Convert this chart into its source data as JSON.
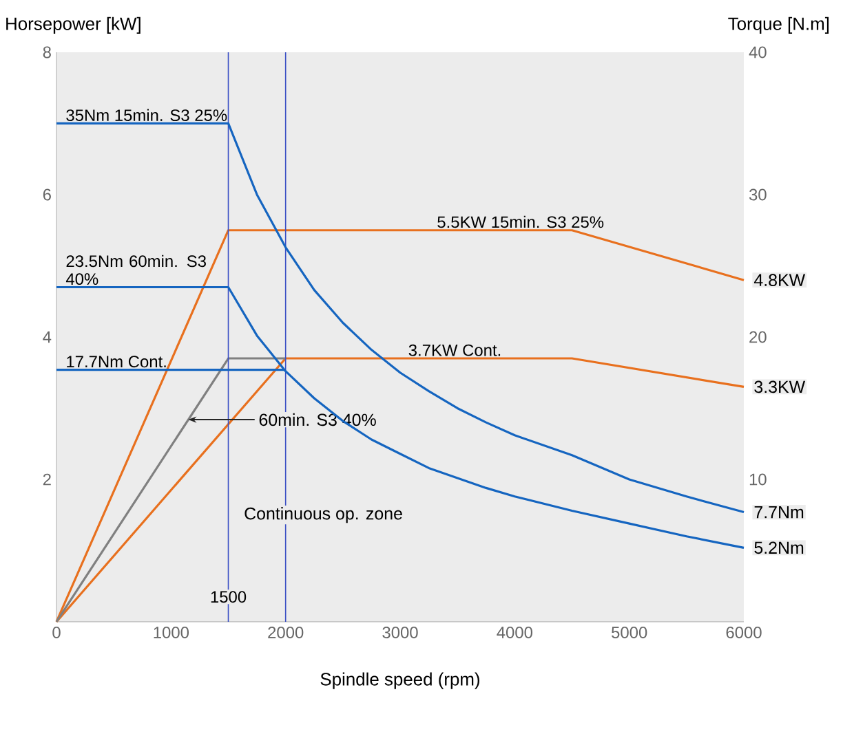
{
  "chart_data": {
    "type": "line",
    "xlabel": "Spindle speed (rpm)",
    "ylabel": "Horsepower [kW]",
    "y2label": "Torque [N.m]",
    "xlim": [
      0,
      6000
    ],
    "xticks": [
      0,
      1000,
      2000,
      3000,
      4000,
      5000,
      6000
    ],
    "ylim": [
      0,
      8
    ],
    "yticks": [
      2,
      4,
      6,
      8
    ],
    "y2lim": [
      0,
      40
    ],
    "y2ticks": [
      10,
      20,
      30,
      40
    ],
    "grid": false,
    "marker": "none",
    "line_style": "solid",
    "series": [
      {
        "name": "5.5KW 15min. S3 25%",
        "color": "#e8701e",
        "x": [
          0,
          1500,
          4500,
          6000
        ],
        "values": [
          0,
          5.5,
          5.5,
          4.8
        ]
      },
      {
        "name": "3.7KW Cont.",
        "color": "#e8701e",
        "x": [
          0,
          2000,
          4500,
          6000
        ],
        "values": [
          0,
          3.7,
          3.7,
          3.3
        ]
      },
      {
        "color": "#808080",
        "x": [
          0,
          1500,
          2000
        ],
        "values": [
          0,
          3.7,
          3.7
        ]
      },
      {
        "name": "35Nm 15min. S3 25%",
        "color": "#1565c0",
        "axis": "y2",
        "x": [
          0,
          1500,
          1750,
          2000,
          2250,
          2500,
          2750,
          3000,
          3250,
          3500,
          3750,
          4000,
          4500,
          5000,
          5500,
          6000
        ],
        "values": [
          35,
          35,
          30,
          26.3,
          23.3,
          21,
          19.1,
          17.5,
          16.2,
          15,
          14,
          13.1,
          11.7,
          10,
          8.8,
          7.7
        ]
      },
      {
        "name": "23.5Nm 60min. S3 40%",
        "color": "#1565c0",
        "axis": "y2",
        "x": [
          0,
          1500,
          1750,
          2000,
          2250,
          2500,
          2750,
          3000,
          3250,
          3500,
          3750,
          4000,
          4500,
          5000,
          5500,
          6000
        ],
        "values": [
          23.5,
          23.5,
          20.1,
          17.6,
          15.7,
          14.1,
          12.8,
          11.8,
          10.8,
          10.1,
          9.4,
          8.8,
          7.8,
          6.9,
          6,
          5.2
        ]
      },
      {
        "name": "17.7Nm Cont.",
        "color": "#1565c0",
        "axis": "y2",
        "x": [
          0,
          2000
        ],
        "values": [
          17.7,
          17.7
        ]
      }
    ],
    "ref_lines": [
      {
        "axis": "x",
        "value": 1500,
        "label": "1500",
        "color": "#3a4fc4"
      },
      {
        "axis": "x",
        "value": 2000,
        "label": null,
        "color": "#3a4fc4"
      }
    ],
    "annotations": [
      "Continuous op. zone",
      "4.8KW",
      "3.3KW",
      "7.7Nm",
      "5.2Nm",
      {
        "text": "60min. S3 40%",
        "x": 1150,
        "y": 2.84
      }
    ]
  }
}
